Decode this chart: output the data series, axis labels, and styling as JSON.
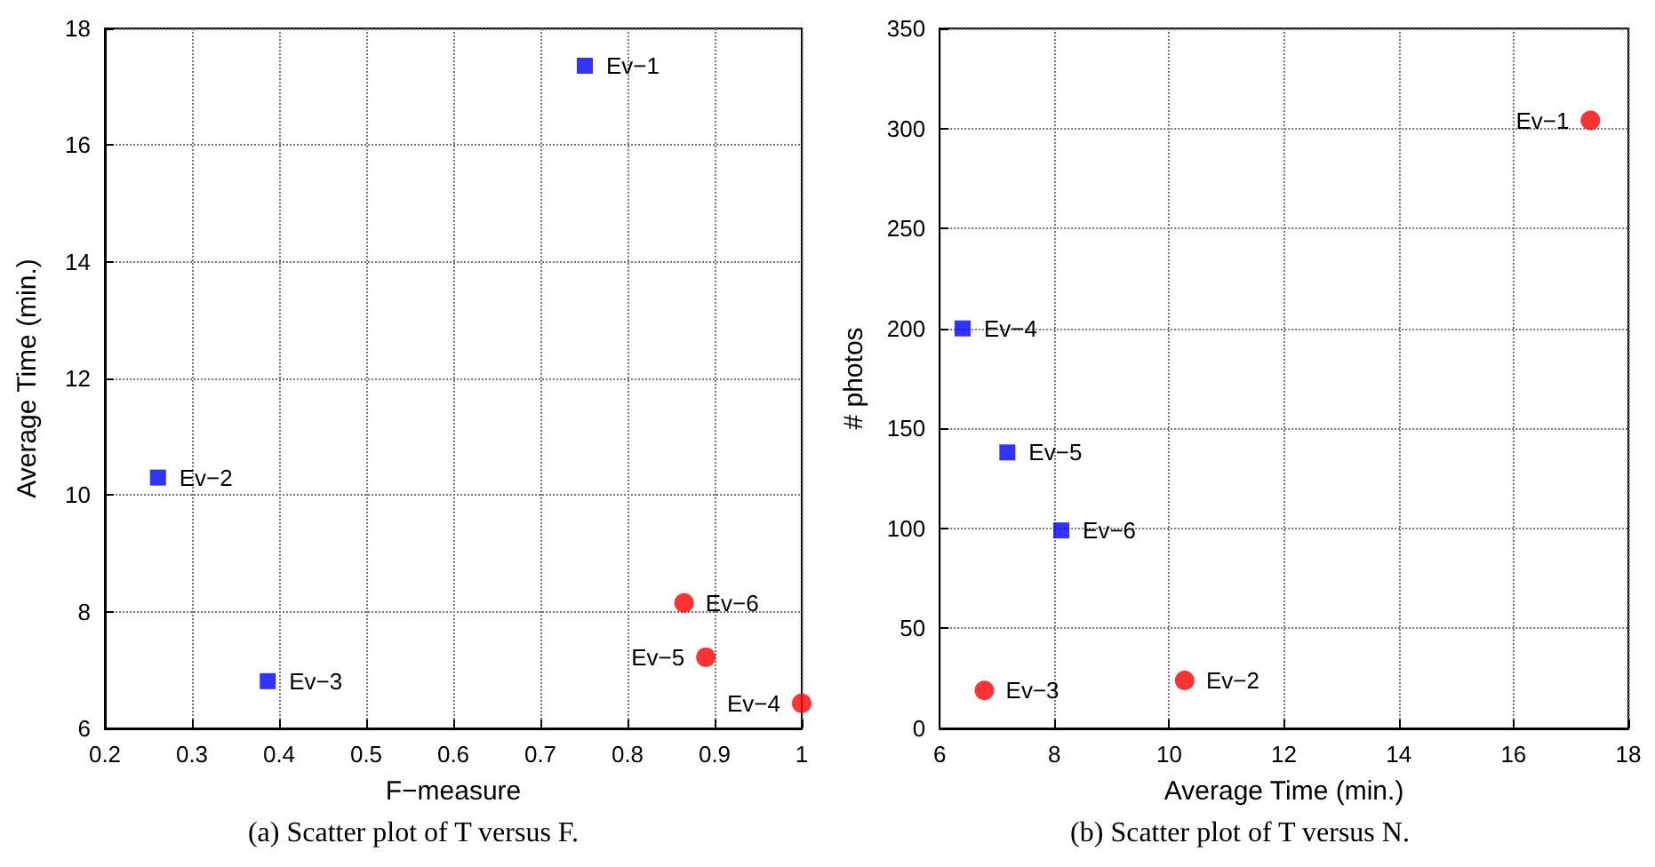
{
  "chart_data": [
    {
      "type": "scatter",
      "title": "(a) Scatter plot of T versus F.",
      "xlabel": "F−measure",
      "ylabel": "Average Time (min.)",
      "xlim": [
        0.2,
        1
      ],
      "xticks": [
        0.2,
        0.3,
        0.4,
        0.5,
        0.6,
        0.7,
        0.8,
        0.9,
        1
      ],
      "ylim": [
        6,
        18
      ],
      "yticks": [
        6,
        8,
        10,
        12,
        14,
        16,
        18
      ],
      "grid": true,
      "series": [
        {
          "color": "#0000ff",
          "marker": "square",
          "x": [
            0.751,
            0.261,
            0.387
          ],
          "values": [
            17.36,
            10.3,
            6.81
          ]
        },
        {
          "color": "#ff0000",
          "marker": "circle",
          "x": [
            1.0,
            0.89,
            0.865
          ],
          "values": [
            6.43,
            7.22,
            8.15
          ]
        }
      ],
      "annotations": [
        {
          "text": "Ev−1",
          "x": 0.751,
          "y": 17.36
        },
        {
          "text": "Ev−2",
          "x": 0.261,
          "y": 10.3
        },
        {
          "text": "Ev−3",
          "x": 0.387,
          "y": 6.81
        },
        {
          "text": "Ev−4",
          "x": 1.0,
          "y": 6.43
        },
        {
          "text": "Ev−5",
          "x": 0.89,
          "y": 7.22
        },
        {
          "text": "Ev−6",
          "x": 0.865,
          "y": 8.15
        }
      ]
    },
    {
      "type": "scatter",
      "title": "(b) Scatter plot of T versus N.",
      "xlabel": "Average Time (min.)",
      "ylabel": "# photos",
      "xlim": [
        6,
        18
      ],
      "xticks": [
        6,
        8,
        10,
        12,
        14,
        16,
        18
      ],
      "ylim": [
        0,
        350
      ],
      "yticks": [
        0,
        50,
        100,
        150,
        200,
        250,
        300,
        350
      ],
      "grid": true,
      "series": [
        {
          "color": "#ff0000",
          "marker": "circle",
          "x": [
            17.34,
            10.27,
            6.78
          ],
          "values": [
            304,
            24,
            19
          ]
        },
        {
          "color": "#0000ff",
          "marker": "square",
          "x": [
            6.4,
            7.18,
            8.12
          ],
          "values": [
            200,
            138,
            99
          ]
        }
      ],
      "annotations": [
        {
          "text": "Ev−1",
          "x": 17.34,
          "y": 304
        },
        {
          "text": "Ev−2",
          "x": 10.27,
          "y": 24
        },
        {
          "text": "Ev−3",
          "x": 6.78,
          "y": 19
        },
        {
          "text": "Ev−4",
          "x": 6.4,
          "y": 200
        },
        {
          "text": "Ev−5",
          "x": 7.18,
          "y": 138
        },
        {
          "text": "Ev−6",
          "x": 8.12,
          "y": 99
        }
      ]
    }
  ]
}
